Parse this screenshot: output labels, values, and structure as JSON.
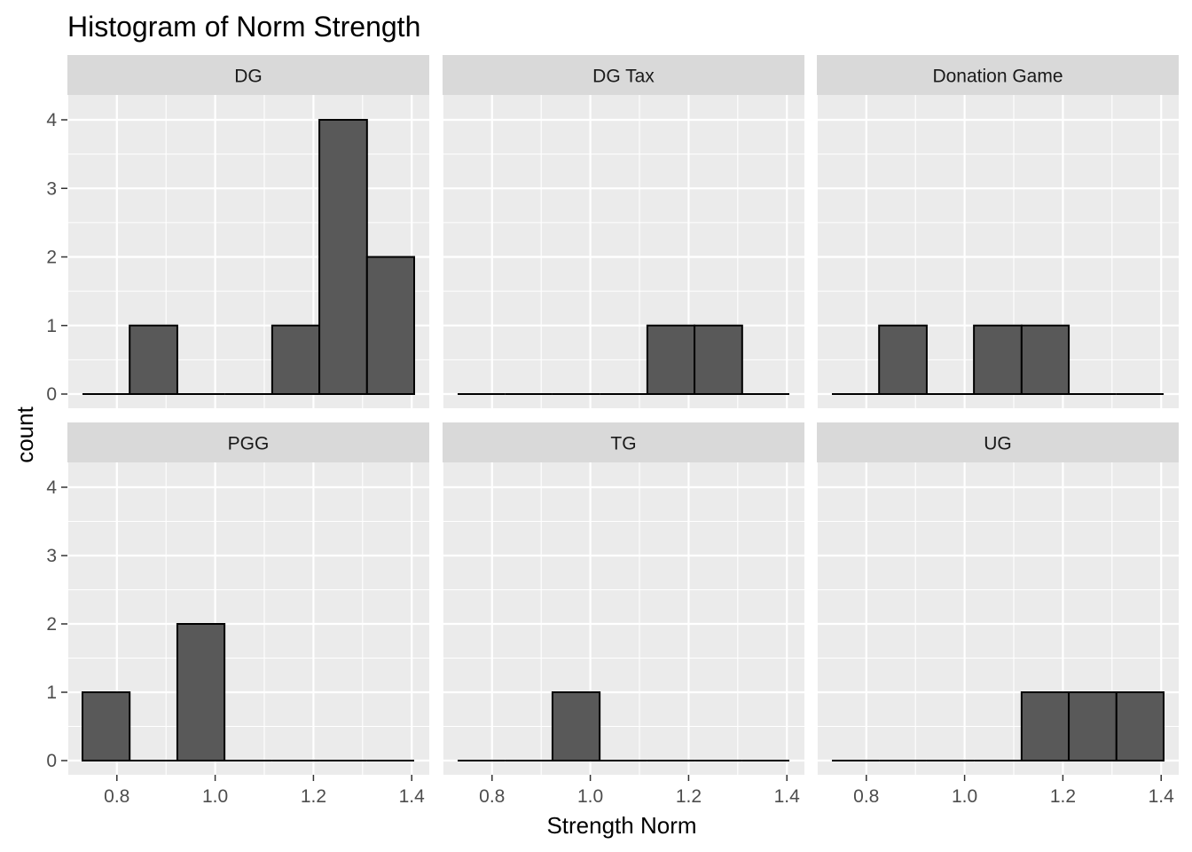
{
  "chart_data": {
    "type": "histogram",
    "title": "Histogram of Norm Strength",
    "xlabel": "Strength Norm",
    "ylabel": "count",
    "xlim": [
      0.73,
      1.405
    ],
    "ylim": [
      0,
      4
    ],
    "x_ticks": [
      "0.8",
      "1.0",
      "1.2",
      "1.4"
    ],
    "y_ticks": [
      "0",
      "1",
      "2",
      "3",
      "4"
    ],
    "bin_edges": [
      0.73,
      0.826,
      0.923,
      1.019,
      1.116,
      1.212,
      1.309,
      1.405
    ],
    "bar_fill": "#595959",
    "bar_outline": "#000000",
    "panel_background": "#ebebeb",
    "strip_background": "#d9d9d9",
    "grid": true,
    "facets": [
      {
        "label": "DG",
        "counts": [
          0,
          1,
          0,
          0,
          1,
          4,
          2
        ]
      },
      {
        "label": "DG Tax",
        "counts": [
          0,
          0,
          0,
          0,
          1,
          1,
          0
        ]
      },
      {
        "label": "Donation Game",
        "counts": [
          0,
          1,
          0,
          1,
          1,
          0,
          0
        ]
      },
      {
        "label": "PGG",
        "counts": [
          1,
          0,
          2,
          0,
          0,
          0,
          0
        ]
      },
      {
        "label": "TG",
        "counts": [
          0,
          0,
          1,
          0,
          0,
          0,
          0
        ]
      },
      {
        "label": "UG",
        "counts": [
          0,
          0,
          0,
          0,
          1,
          1,
          1
        ]
      }
    ]
  }
}
